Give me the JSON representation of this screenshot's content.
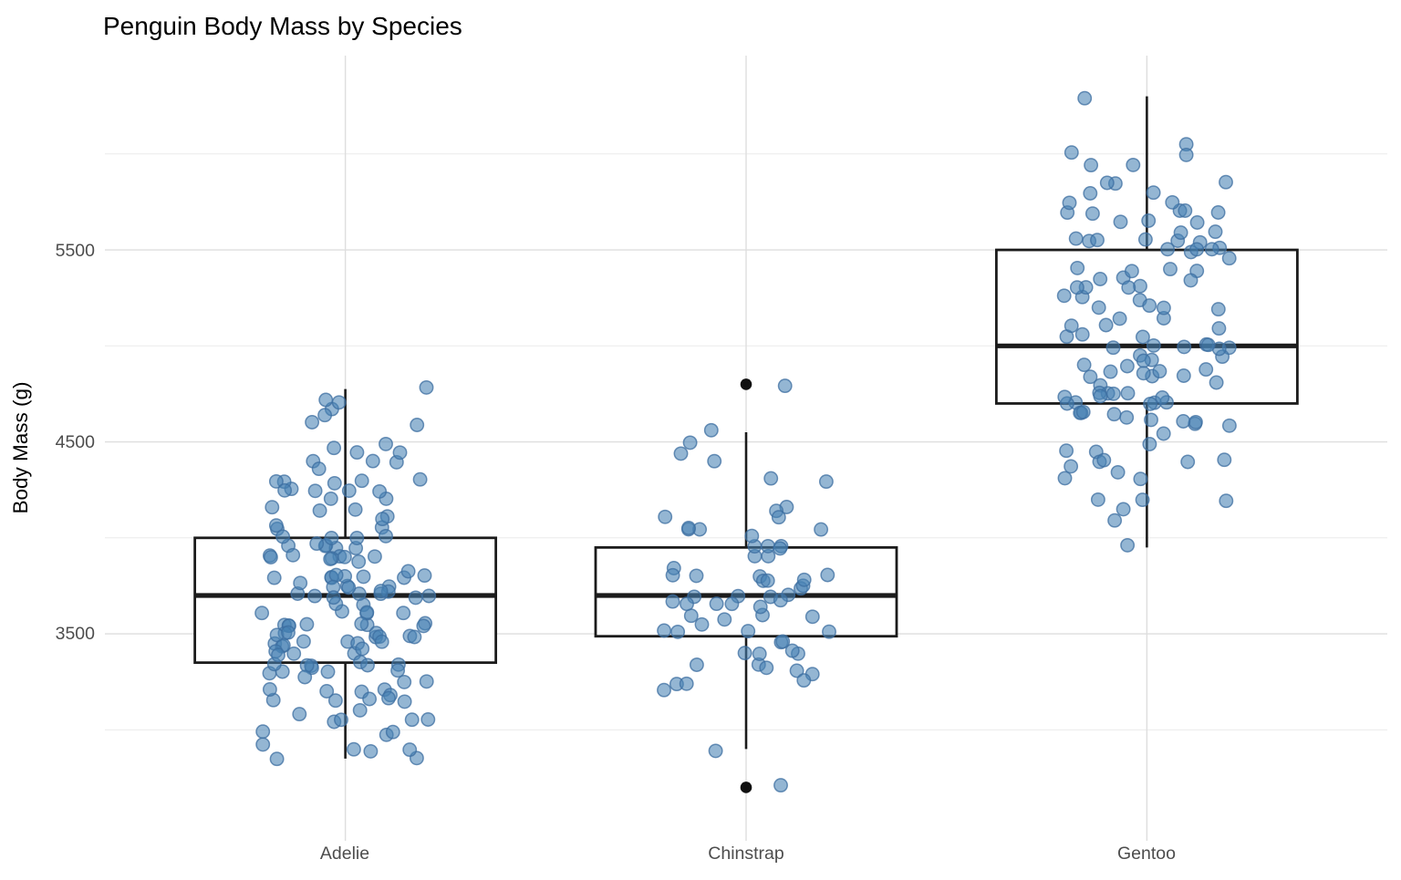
{
  "title": "Penguin Body Mass by Species",
  "chart_data": {
    "type": "boxplot",
    "subtype": "boxplot-with-jittered-points",
    "title": "Penguin Body Mass by Species",
    "xlabel": "",
    "ylabel": "Body Mass (g)",
    "categories": [
      "Adelie",
      "Chinstrap",
      "Gentoo"
    ],
    "y_ticks": [
      3500,
      4500,
      5500
    ],
    "y_minor_gridlines": [
      3000,
      4000,
      5000,
      6000
    ],
    "ylim": [
      2422,
      6512
    ],
    "grid": "horizontal-major-minor plus vertical at categories",
    "legend_position": "none",
    "colors": {
      "point_fill": "#4682B4",
      "point_fill_opacity": 0.58,
      "point_stroke": "#3c6ea0",
      "point_stroke_opacity": 0.75,
      "box_stroke": "#1b1b1b",
      "box_fill": "#ffffff",
      "outlier_fill": "#111111",
      "grid_major": "#dedede",
      "grid_minor": "#ececec",
      "tick_text": "#4d4d4d",
      "title_text": "#000000"
    },
    "boxplots": [
      {
        "category": "Adelie",
        "q1": 3350,
        "median": 3700,
        "q3": 4000,
        "whisker_low": 2850,
        "whisker_high": 4775,
        "outliers": []
      },
      {
        "category": "Chinstrap",
        "q1": 3487.5,
        "median": 3700,
        "q3": 3950,
        "whisker_low": 2900,
        "whisker_high": 4550,
        "outliers": [
          4800,
          2700
        ]
      },
      {
        "category": "Gentoo",
        "q1": 4700,
        "median": 5000,
        "q3": 5500,
        "whisker_low": 3950,
        "whisker_high": 6300,
        "outliers": []
      }
    ],
    "points": {
      "Adelie": [
        3750,
        3800,
        3250,
        3450,
        3650,
        3625,
        4675,
        3475,
        4250,
        3300,
        3700,
        3200,
        3800,
        4400,
        3700,
        3450,
        4500,
        3325,
        4200,
        3400,
        3600,
        3800,
        3950,
        3800,
        3800,
        3550,
        3200,
        3150,
        3950,
        3250,
        3900,
        3300,
        3900,
        3325,
        4150,
        3950,
        3550,
        3300,
        4650,
        3150,
        3900,
        3100,
        4400,
        3000,
        4600,
        3425,
        2975,
        3450,
        4150,
        3500,
        4300,
        3450,
        4050,
        2900,
        3700,
        3550,
        3800,
        2850,
        3750,
        3150,
        4400,
        3600,
        4050,
        2850,
        3950,
        3350,
        4100,
        3050,
        4450,
        3600,
        3900,
        3550,
        4150,
        3700,
        4250,
        3700,
        3900,
        3550,
        4000,
        3200,
        4700,
        3800,
        4200,
        3350,
        3550,
        3800,
        3500,
        3950,
        3600,
        3550,
        4300,
        3400,
        4450,
        3300,
        4300,
        3700,
        4350,
        2900,
        4100,
        3725,
        4725,
        3075,
        4250,
        2925,
        3550,
        3750,
        3900,
        3175,
        4775,
        3825,
        4600,
        3200,
        4275,
        3900,
        4075,
        2900,
        3775,
        3350,
        3325,
        3150,
        3500,
        3450,
        3875,
        3050,
        4000,
        3275,
        4300,
        3050,
        4000,
        3325,
        3500,
        3500,
        4475,
        3425,
        3900,
        3175,
        3975,
        3400,
        4250,
        3400,
        3475,
        3050,
        3725,
        3000,
        3650,
        4250,
        3475,
        3450,
        3750,
        3700,
        4000
      ],
      "Chinstrap": [
        3500,
        3900,
        3650,
        3525,
        3725,
        3950,
        3250,
        3750,
        4150,
        3700,
        3800,
        3775,
        3700,
        4050,
        3575,
        4050,
        3300,
        3700,
        3450,
        4400,
        3600,
        3400,
        2900,
        3800,
        3300,
        4150,
        3400,
        3800,
        3700,
        4550,
        3200,
        4300,
        3350,
        4100,
        3600,
        3900,
        3850,
        4800,
        2700,
        4500,
        3950,
        3650,
        3550,
        3500,
        3675,
        4450,
        3400,
        4300,
        3250,
        3675,
        3325,
        3950,
        3600,
        4050,
        3350,
        3450,
        3250,
        4050,
        3800,
        3525,
        3950,
        3650,
        3650,
        4000,
        3400,
        3775,
        4100,
        3775
      ],
      "Gentoo": [
        4500,
        5700,
        4450,
        5700,
        5400,
        4550,
        4800,
        5200,
        4400,
        5150,
        4650,
        5550,
        4650,
        5850,
        4200,
        5850,
        4150,
        6300,
        4800,
        5350,
        5700,
        5000,
        4400,
        5050,
        5000,
        5100,
        4100,
        5650,
        4600,
        5550,
        5250,
        4700,
        5050,
        6050,
        5150,
        5400,
        4950,
        5250,
        4350,
        5350,
        3950,
        5700,
        4300,
        4750,
        5550,
        4900,
        4200,
        5400,
        5100,
        5300,
        4850,
        5300,
        4400,
        5000,
        4900,
        5050,
        4300,
        5000,
        4450,
        5550,
        4200,
        5300,
        4400,
        5650,
        4700,
        5700,
        4650,
        5800,
        4700,
        5550,
        4750,
        5000,
        5100,
        5200,
        4700,
        5800,
        4600,
        6000,
        4750,
        5950,
        4625,
        5450,
        4725,
        5350,
        4750,
        5600,
        4600,
        5300,
        4875,
        5550,
        4950,
        5400,
        4750,
        5650,
        4850,
        5200,
        4925,
        4875,
        4625,
        5250,
        4850,
        5600,
        4975,
        5500,
        4725,
        5500,
        4700,
        5500,
        4575,
        5500,
        5000,
        5950,
        4650,
        5500,
        4375,
        5850,
        4875,
        6000,
        4925,
        5750,
        4850,
        5200,
        5750
      ]
    }
  }
}
